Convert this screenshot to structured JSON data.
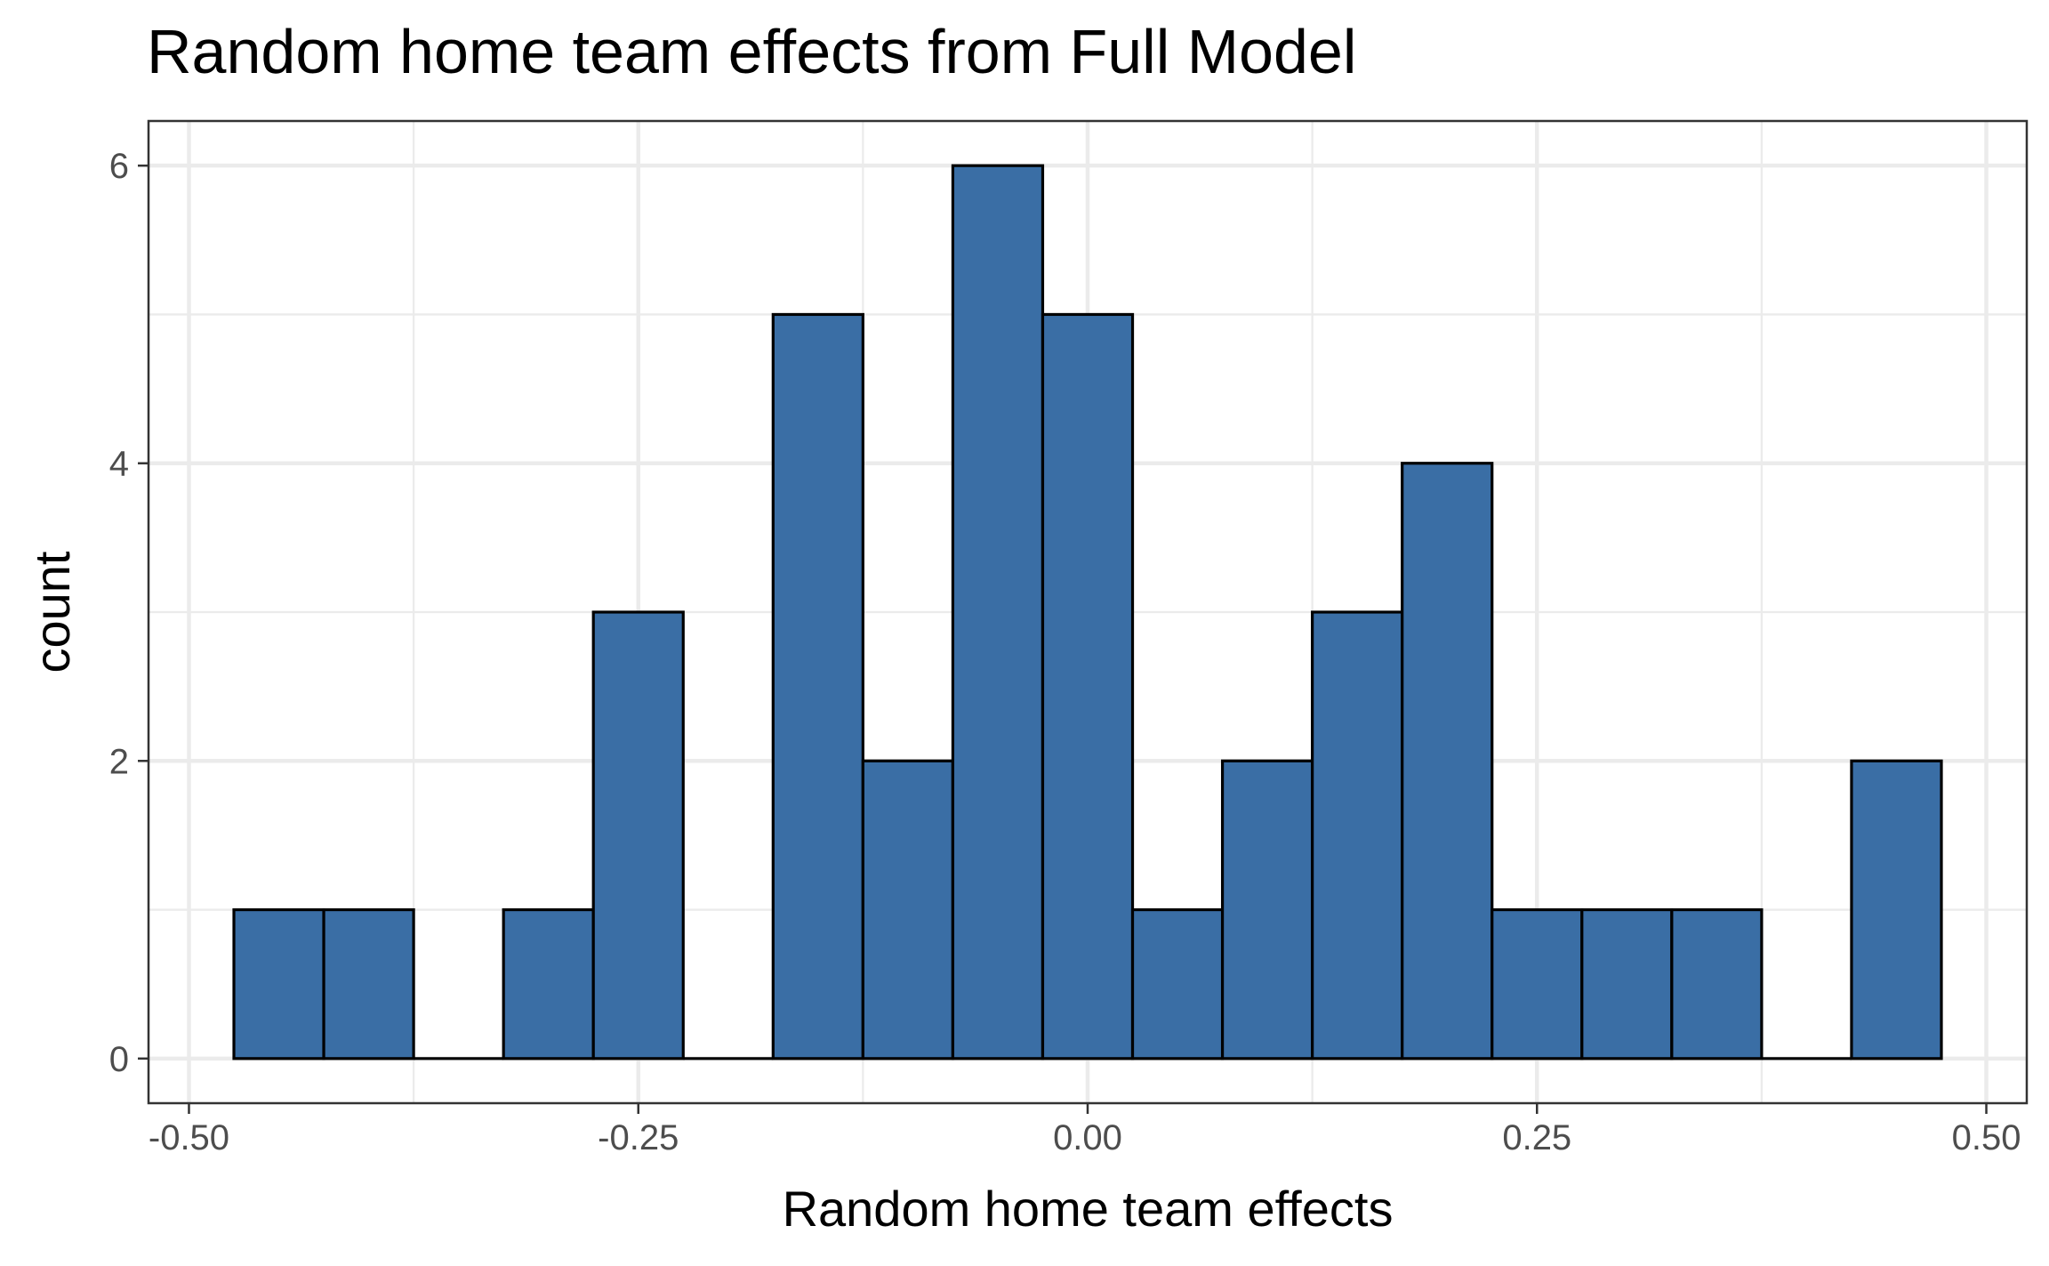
{
  "chart_data": {
    "type": "histogram",
    "title": "Random home team effects from Full Model",
    "xlabel": "Random home team effects",
    "ylabel": "count",
    "bin_width": 0.05,
    "bins": [
      {
        "x0": -0.475,
        "x1": -0.425,
        "count": 1
      },
      {
        "x0": -0.425,
        "x1": -0.375,
        "count": 1
      },
      {
        "x0": -0.375,
        "x1": -0.325,
        "count": 0
      },
      {
        "x0": -0.325,
        "x1": -0.275,
        "count": 1
      },
      {
        "x0": -0.275,
        "x1": -0.225,
        "count": 3
      },
      {
        "x0": -0.225,
        "x1": -0.175,
        "count": 0
      },
      {
        "x0": -0.175,
        "x1": -0.125,
        "count": 5
      },
      {
        "x0": -0.125,
        "x1": -0.075,
        "count": 2
      },
      {
        "x0": -0.075,
        "x1": -0.025,
        "count": 6
      },
      {
        "x0": -0.025,
        "x1": 0.025,
        "count": 5
      },
      {
        "x0": 0.025,
        "x1": 0.075,
        "count": 1
      },
      {
        "x0": 0.075,
        "x1": 0.125,
        "count": 2
      },
      {
        "x0": 0.125,
        "x1": 0.175,
        "count": 3
      },
      {
        "x0": 0.175,
        "x1": 0.225,
        "count": 4
      },
      {
        "x0": 0.225,
        "x1": 0.275,
        "count": 1
      },
      {
        "x0": 0.275,
        "x1": 0.325,
        "count": 1
      },
      {
        "x0": 0.325,
        "x1": 0.375,
        "count": 1
      },
      {
        "x0": 0.375,
        "x1": 0.425,
        "count": 0
      },
      {
        "x0": 0.425,
        "x1": 0.475,
        "count": 2
      }
    ],
    "xlim": [
      -0.5225,
      0.5225
    ],
    "ylim": [
      -0.3,
      6.3
    ],
    "x_ticks": [
      -0.5,
      -0.25,
      0,
      0.25,
      0.5
    ],
    "x_tick_labels": [
      "-0.50",
      "-0.25",
      "0.00",
      "0.25",
      "0.50"
    ],
    "x_minor_ticks": [
      -0.375,
      -0.125,
      0.125,
      0.375
    ],
    "y_ticks": [
      0,
      2,
      4,
      6
    ],
    "y_tick_labels": [
      "0",
      "2",
      "4",
      "6"
    ],
    "y_minor_ticks": [
      1,
      3,
      5
    ],
    "grid": true,
    "legend": "none",
    "colors": {
      "bar_fill": "#3a6ea5",
      "bar_outline": "#000000",
      "grid": "#ebebeb",
      "tick_text": "#4d4d4d"
    }
  }
}
